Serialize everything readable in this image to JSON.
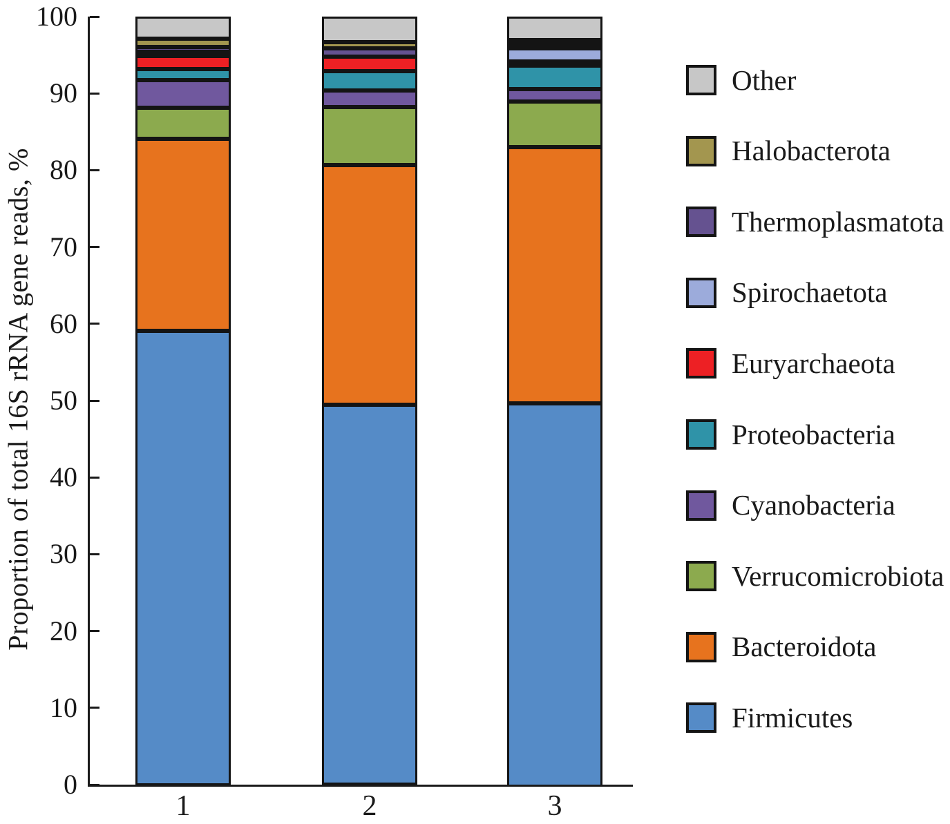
{
  "figure": {
    "background": "#ffffff",
    "axis_color": "#1a1a1a"
  },
  "y_axis": {
    "ticks": [
      100,
      90,
      80,
      70,
      60,
      50,
      40,
      30,
      20,
      10,
      0
    ]
  },
  "x_axis": {
    "categories": [
      "1",
      "2",
      "3"
    ]
  },
  "legend": {
    "position": "right",
    "items": [
      {
        "label": "Other",
        "color": "#c7c7c7"
      },
      {
        "label": "Halobacterota",
        "color": "#a3964f"
      },
      {
        "label": "Thermoplasmatota",
        "color": "#655290"
      },
      {
        "label": "Spirochaetota",
        "color": "#9cabdb"
      },
      {
        "label": "Euryarchaeota",
        "color": "#ed2024"
      },
      {
        "label": "Proteobacteria",
        "color": "#2f93a8"
      },
      {
        "label": "Cyanobacteria",
        "color": "#70589e"
      },
      {
        "label": "Verrucomicrobiota",
        "color": "#8caa4e"
      },
      {
        "label": "Bacteroidota",
        "color": "#e7731e"
      },
      {
        "label": "Firmicutes",
        "color": "#558bc7"
      }
    ]
  },
  "chart_data": {
    "type": "bar",
    "stacked": true,
    "title": "",
    "xlabel": "",
    "ylabel": "Proportion of total 16S rRNA gene reads, %",
    "ylim": [
      0,
      100
    ],
    "grid": false,
    "legend_position": "right",
    "categories": [
      "1",
      "2",
      "3"
    ],
    "series": [
      {
        "name": "Firmicutes",
        "color": "#558bc7",
        "values": [
          59.2,
          49.5,
          50.5
        ]
      },
      {
        "name": "Bacteroidota",
        "color": "#e7731e",
        "values": [
          25.0,
          31.2,
          33.3
        ]
      },
      {
        "name": "Verrucomicrobiota",
        "color": "#8caa4e",
        "values": [
          4.1,
          7.5,
          6.0
        ]
      },
      {
        "name": "Cyanobacteria",
        "color": "#70589e",
        "values": [
          3.6,
          2.2,
          1.6
        ]
      },
      {
        "name": "Proteobacteria",
        "color": "#2f93a8",
        "values": [
          1.4,
          2.5,
          3.0
        ]
      },
      {
        "name": "Euryarchaeota",
        "color": "#ed2024",
        "values": [
          1.7,
          1.9,
          0.3
        ]
      },
      {
        "name": "Spirochaetota",
        "color": "#9cabdb",
        "values": [
          0.4,
          0.0,
          1.7
        ]
      },
      {
        "name": "Thermoplasmatota",
        "color": "#655290",
        "values": [
          0.6,
          1.1,
          0.25
        ]
      },
      {
        "name": "Halobacterota",
        "color": "#a3964f",
        "values": [
          1.1,
          0.8,
          0.25
        ]
      },
      {
        "name": "Other",
        "color": "#c7c7c7",
        "values": [
          2.9,
          3.3,
          3.1
        ]
      }
    ]
  }
}
